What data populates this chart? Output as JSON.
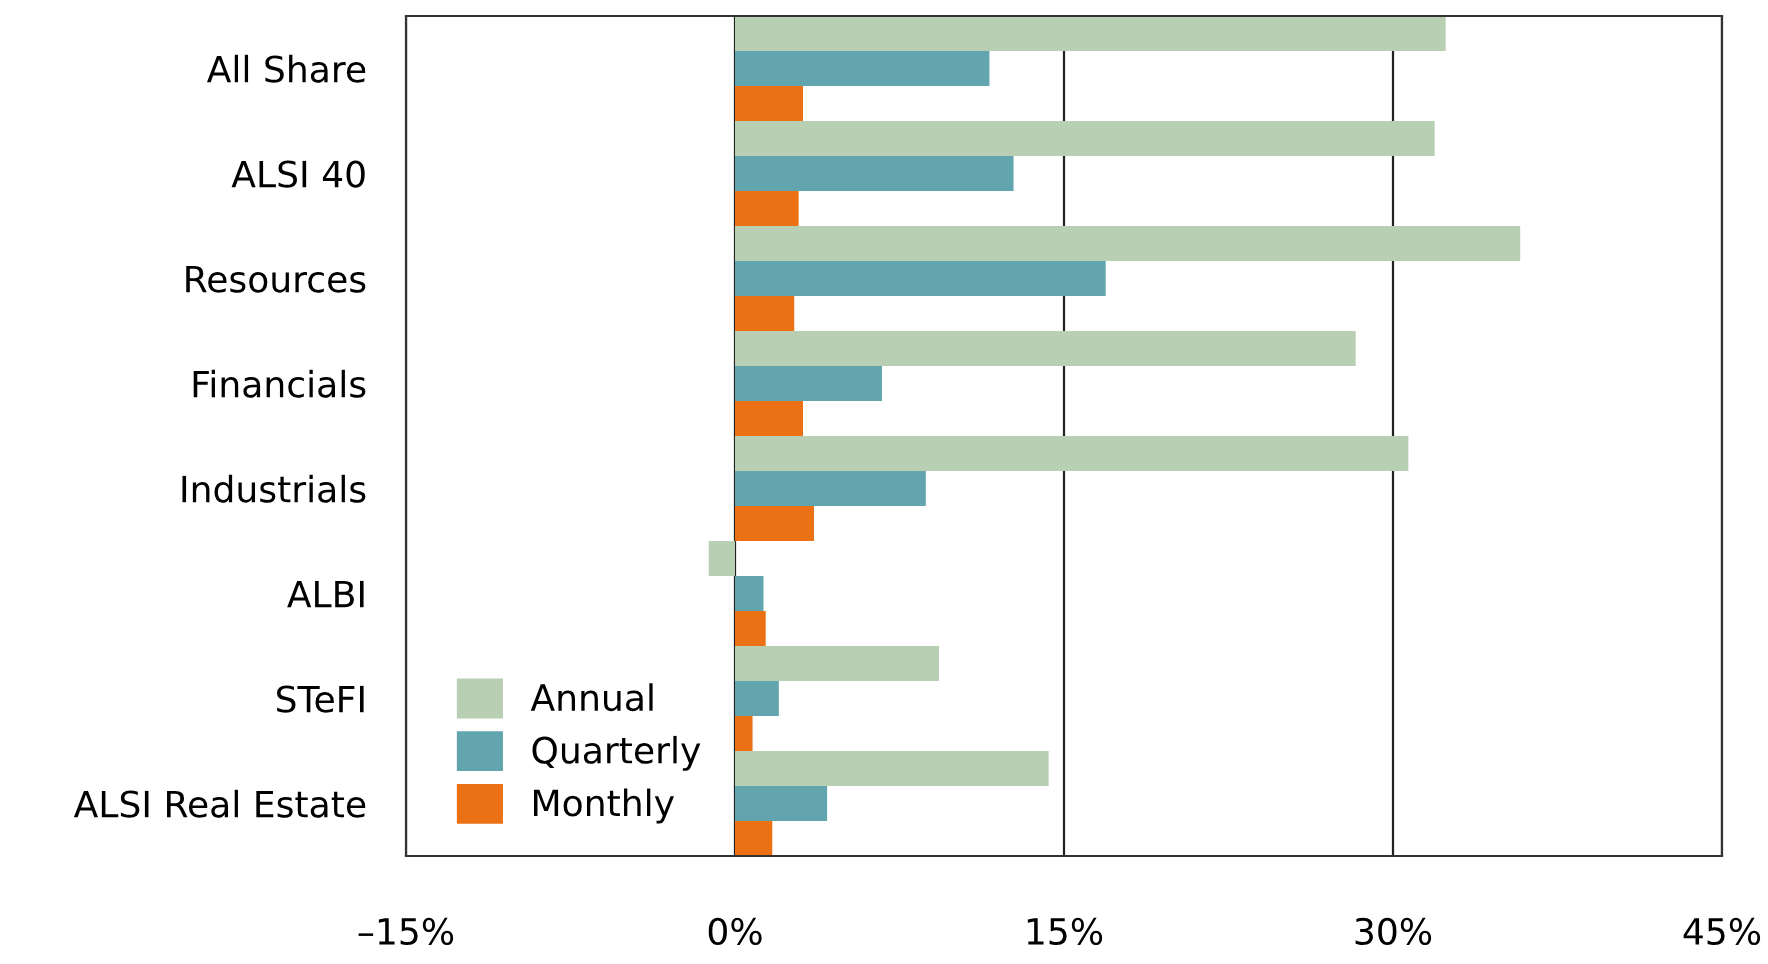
{
  "chart_data": {
    "type": "bar",
    "orientation": "horizontal",
    "categories": [
      "All Share",
      "ALSI 40",
      "Resources",
      "Financials",
      "Industrials",
      "ALBI",
      "STeFI",
      "ALSI Real Estate"
    ],
    "series": [
      {
        "name": "Annual",
        "color": "#b9cfb4",
        "values": [
          32.4,
          31.9,
          35.8,
          28.3,
          30.7,
          -1.2,
          9.3,
          14.3
        ]
      },
      {
        "name": "Quarterly",
        "color": "#62a5ae",
        "values": [
          11.6,
          12.7,
          16.9,
          6.7,
          8.7,
          1.3,
          2.0,
          4.2
        ]
      },
      {
        "name": "Monthly",
        "color": "#ec7014",
        "values": [
          3.1,
          2.9,
          2.7,
          3.1,
          3.6,
          1.4,
          0.8,
          1.7
        ]
      }
    ],
    "xlim": [
      -15,
      45
    ],
    "xticks": [
      {
        "value": -15,
        "label": "–15%"
      },
      {
        "value": 0,
        "label": "0%"
      },
      {
        "value": 15,
        "label": "15%"
      },
      {
        "value": 30,
        "label": "30%"
      },
      {
        "value": 45,
        "label": "45%"
      }
    ],
    "grid": "x",
    "legend": "bottom left"
  }
}
